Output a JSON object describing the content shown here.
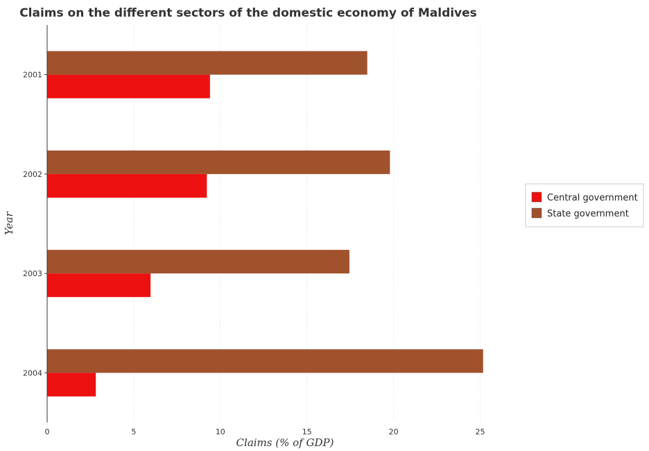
{
  "chart_data": {
    "type": "bar",
    "orientation": "horizontal",
    "title": "Claims on the different sectors of the domestic economy of Maldives",
    "xlabel": "Claims (% of GDP)",
    "ylabel": "Year",
    "categories": [
      "2001",
      "2002",
      "2003",
      "2004"
    ],
    "xlim": [
      0,
      27.5
    ],
    "xticks": [
      0,
      5,
      10,
      15,
      20,
      25
    ],
    "grid": true,
    "legend_position": "right",
    "series": [
      {
        "name": "Central government",
        "color": "#ee1111",
        "values": [
          9.4,
          9.22,
          5.97,
          2.81
        ]
      },
      {
        "name": "State government",
        "color": "#a0522d",
        "values": [
          18.48,
          19.79,
          17.45,
          25.17
        ]
      }
    ]
  }
}
